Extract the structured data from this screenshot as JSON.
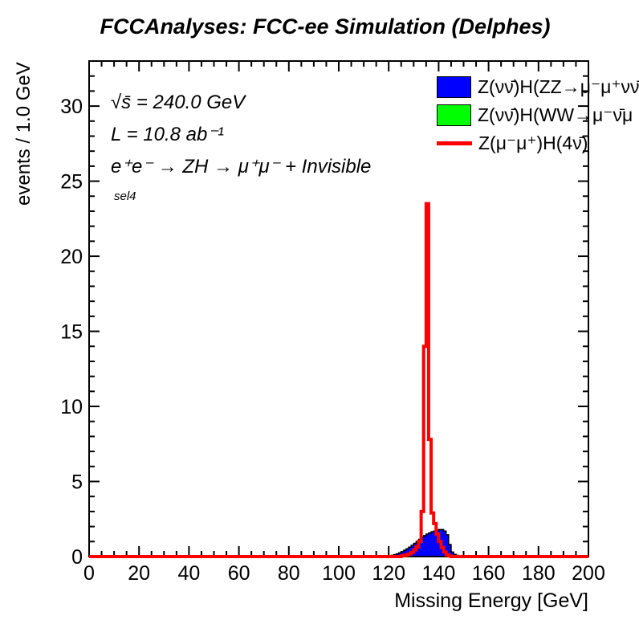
{
  "title": "FCCAnalyses: FCC-ee Simulation (Delphes)",
  "annotations": {
    "sqrt_s": "√s̄ = 240.0 GeV",
    "lumi": "L = 10.8 ab⁻¹",
    "process": "e⁺e⁻ → ZH → μ⁺μ⁻ + Invisible",
    "selection": "sel4"
  },
  "legend": [
    {
      "label": "Z(νν̄)H(ZZ→μ⁻μ⁺νν̄",
      "swatch": "box",
      "color": "#0000ff"
    },
    {
      "label": "Z(νν̄)H(WW→μ⁻ν̄μ",
      "swatch": "box",
      "color": "#00ff00"
    },
    {
      "label": "Z(μ⁻μ⁺)H(4ν̄)",
      "swatch": "line",
      "color": "#ff0000"
    }
  ],
  "chart_data": {
    "type": "bar",
    "subtype": "step-histogram",
    "title": "FCCAnalyses: FCC-ee Simulation (Delphes)",
    "xlabel": "Missing Energy [GeV]",
    "ylabel": "events / 1.0 GeV",
    "xlim": [
      0,
      200
    ],
    "ylim": [
      0,
      33
    ],
    "x_ticks": [
      0,
      20,
      40,
      60,
      80,
      100,
      120,
      140,
      160,
      180,
      200
    ],
    "y_ticks": [
      0,
      5,
      10,
      15,
      20,
      25,
      30
    ],
    "x_minor_step": 5,
    "y_minor_step": 1,
    "grid": false,
    "legend_position": "top-right",
    "bin_width": 1,
    "series": [
      {
        "name": "Z(νν̄)H(ZZ→μ⁻μ⁺νν̄)",
        "style": "filled",
        "color": "#0000ff",
        "edge_color": "#000000",
        "bin_start": 120,
        "values": [
          0,
          0.08,
          0.13,
          0.18,
          0.25,
          0.33,
          0.42,
          0.52,
          0.63,
          0.75,
          0.88,
          1.0,
          1.15,
          1.3,
          1.4,
          1.5,
          1.58,
          1.65,
          1.7,
          1.75,
          1.8,
          1.8,
          1.7,
          1.45,
          0.8,
          0.3,
          0.15,
          0.08,
          0.03,
          0
        ]
      },
      {
        "name": "Z(νν̄)H(WW→μ⁻ν̄μ⁺ν)",
        "style": "filled",
        "color": "#00ff00",
        "edge_color": "#000000",
        "bin_start": 120,
        "values": [
          0,
          0,
          0,
          0,
          0,
          0,
          0,
          0,
          0,
          0,
          0,
          0,
          0,
          0,
          0,
          0,
          0,
          0,
          0,
          0,
          0,
          0,
          0,
          0,
          0,
          0,
          0,
          0,
          0,
          0
        ]
      },
      {
        "name": "Z(μ⁻μ⁺)H(4ν̄)",
        "style": "line",
        "color": "#ff0000",
        "line_width": 4,
        "bin_start": 120,
        "values": [
          0,
          0,
          0,
          0,
          0,
          0.05,
          0.08,
          0.12,
          0.18,
          0.28,
          0.45,
          0.65,
          1.0,
          3.0,
          14.0,
          23.5,
          7.8,
          2.9,
          2.2,
          1.5,
          1.0,
          0.6,
          0.3,
          0.12,
          0.04,
          0
        ]
      }
    ]
  }
}
